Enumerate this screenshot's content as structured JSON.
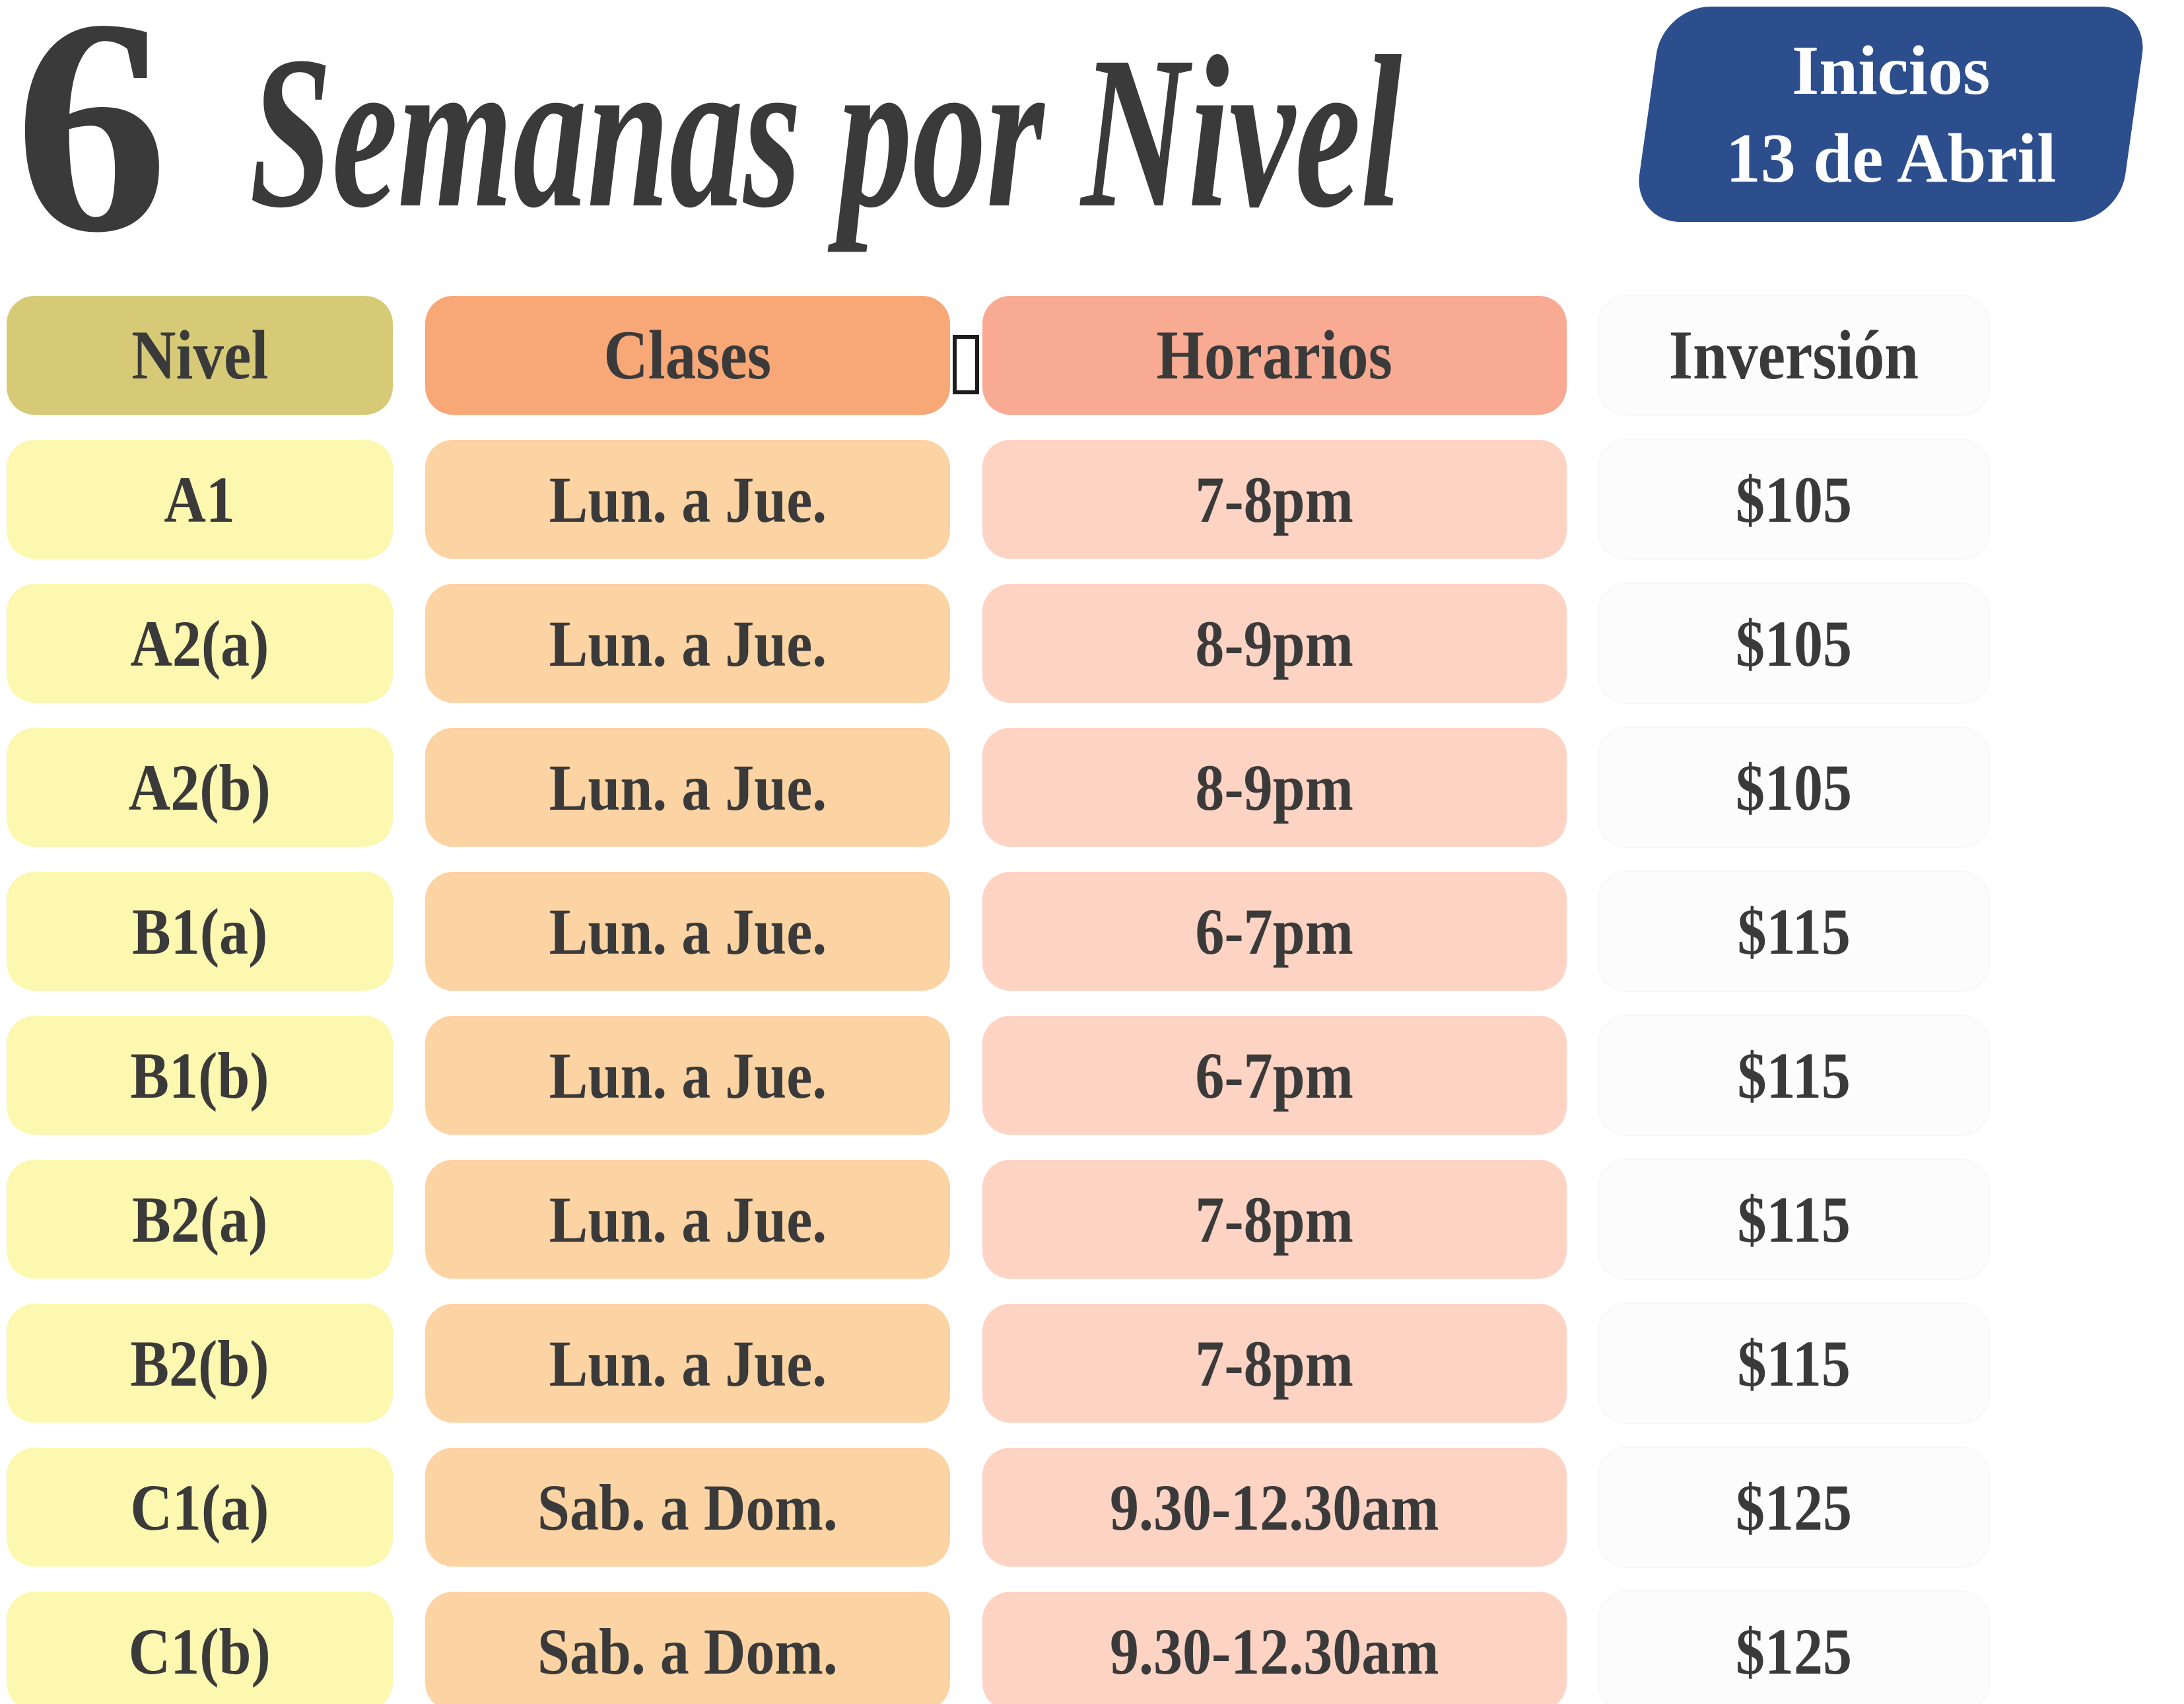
{
  "title": {
    "number": "6",
    "script": "Semanas por Nivel"
  },
  "badge": {
    "line1": "Inicios",
    "line2": "13 de Abril",
    "bg": "#2d4e8c",
    "text_color": "#ffffff"
  },
  "colors": {
    "text": "#3b3a3a",
    "background": "#ffffff"
  },
  "table": {
    "headers": [
      {
        "key": "nivel",
        "label": "Nivel",
        "bg": "#d6ca77"
      },
      {
        "key": "clases",
        "label": "Clases",
        "bg": "#f8a877"
      },
      {
        "key": "horarios",
        "label": "Horarios",
        "bg": "#f8ab92"
      },
      {
        "key": "inversion",
        "label": "Inversión",
        "bg": "#fdfcfc"
      }
    ],
    "cell_colors": {
      "nivel": "#fdf8b0",
      "clases": "#fcd3a3",
      "horarios": "#fdd3c3",
      "inversion": "#fdfcfc"
    },
    "rows": [
      {
        "nivel": "A1",
        "clases": "Lun. a Jue.",
        "horarios": "7-8pm",
        "inversion": "$105"
      },
      {
        "nivel": "A2(a)",
        "clases": "Lun. a Jue.",
        "horarios": "8-9pm",
        "inversion": "$105"
      },
      {
        "nivel": "A2(b)",
        "clases": "Lun. a Jue.",
        "horarios": "8-9pm",
        "inversion": "$105"
      },
      {
        "nivel": "B1(a)",
        "clases": "Lun. a Jue.",
        "horarios": "6-7pm",
        "inversion": "$115"
      },
      {
        "nivel": "B1(b)",
        "clases": "Lun. a Jue.",
        "horarios": "6-7pm",
        "inversion": "$115"
      },
      {
        "nivel": "B2(a)",
        "clases": "Lun. a Jue.",
        "horarios": "7-8pm",
        "inversion": "$115"
      },
      {
        "nivel": "B2(b)",
        "clases": "Lun. a Jue.",
        "horarios": "7-8pm",
        "inversion": "$115"
      },
      {
        "nivel": "C1(a)",
        "clases": "Sab. a Dom.",
        "horarios": "9.30-12.30am",
        "inversion": "$125"
      },
      {
        "nivel": "C1(b)",
        "clases": "Sab. a Dom.",
        "horarios": "9.30-12.30am",
        "inversion": "$125"
      }
    ]
  }
}
